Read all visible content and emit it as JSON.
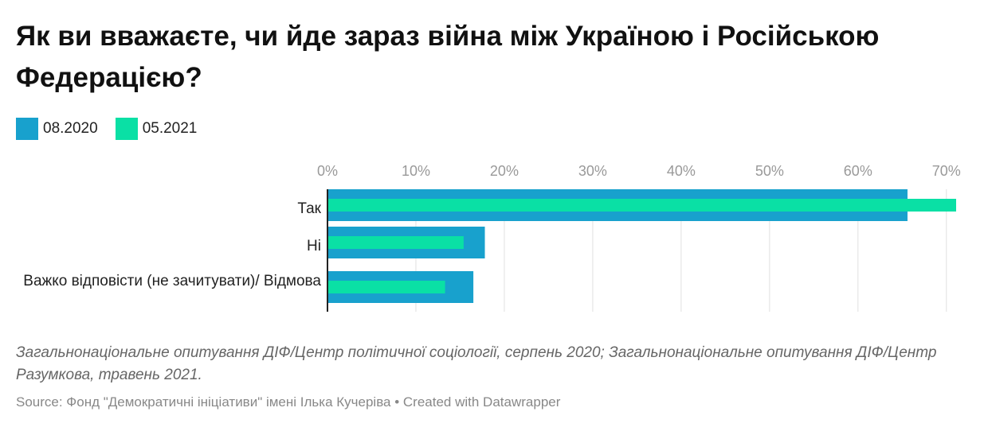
{
  "chart_data": {
    "type": "bar",
    "title": "Як ви вважаєте, чи йде зараз війна між Україною і Російською Федерацією?",
    "categories": [
      "Так",
      "Ні",
      "Важко відповісти (не зачитувати)/ Відмова"
    ],
    "series": [
      {
        "name": "08.2020",
        "color": "#18a1cd",
        "values": [
          65.6,
          17.8,
          16.5
        ]
      },
      {
        "name": "05.2021",
        "color": "#0ae0a5",
        "values": [
          71.1,
          15.4,
          13.3
        ]
      }
    ],
    "xlim": [
      0,
      71.1
    ],
    "xticks": [
      {
        "value": 0,
        "label": "0%"
      },
      {
        "value": 10,
        "label": "10%"
      },
      {
        "value": 20,
        "label": "20%"
      },
      {
        "value": 30,
        "label": "30%"
      },
      {
        "value": 40,
        "label": "40%"
      },
      {
        "value": 50,
        "label": "50%"
      },
      {
        "value": 60,
        "label": "60%"
      },
      {
        "value": 70,
        "label": "70%"
      }
    ],
    "grid": true,
    "notes": "Загальнонаціональне опитування ДІФ/Центр політичної соціології, серпень 2020; Загальнонаціональне опитування ДІФ/Центр Разумкова, травень 2021.",
    "source": "Source: Фонд \"Демократичні ініціативи\" імені Ілька Кучеріва • Created with Datawrapper"
  }
}
